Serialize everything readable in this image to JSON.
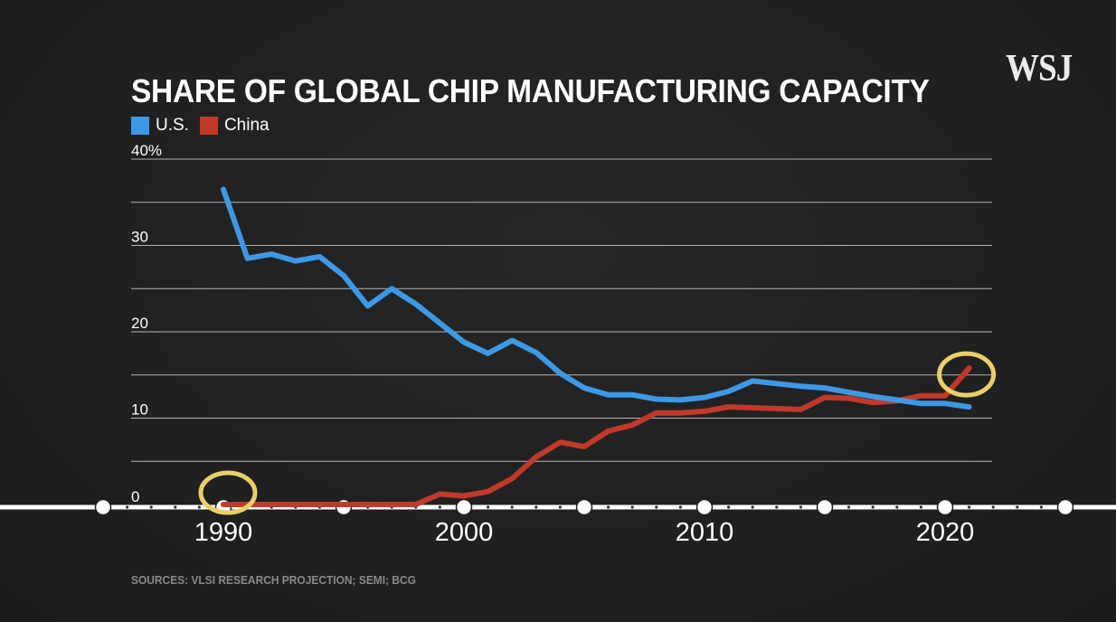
{
  "logo": "WSJ",
  "title": "SHARE OF GLOBAL CHIP MANUFACTURING CAPACITY",
  "source": "SOURCES: VLSI RESEARCH PROJECTION; SEMI; BCG",
  "colors": {
    "us": "#3d99e6",
    "china": "#c0392b",
    "highlight": "#e8cf6a",
    "grid": "#d8d8d8"
  },
  "legend": [
    {
      "label": "U.S.",
      "color": "#3d99e6"
    },
    {
      "label": "China",
      "color": "#c0392b"
    }
  ],
  "chart_data": {
    "type": "line",
    "title": "SHARE OF GLOBAL CHIP MANUFACTURING CAPACITY",
    "xlabel": "",
    "ylabel": "",
    "xlim": [
      1985,
      2025
    ],
    "ylim": [
      0,
      40
    ],
    "grid": true,
    "legend_position": "top-left",
    "y_ticks": [
      {
        "value": 0,
        "label": "0"
      },
      {
        "value": 10,
        "label": "10"
      },
      {
        "value": 20,
        "label": "20"
      },
      {
        "value": 30,
        "label": "30"
      },
      {
        "value": 40,
        "label": "40%"
      }
    ],
    "x_ticks": [
      {
        "value": 1990,
        "label": "1990"
      },
      {
        "value": 2000,
        "label": "2000"
      },
      {
        "value": 2010,
        "label": "2010"
      },
      {
        "value": 2020,
        "label": "2020"
      }
    ],
    "series": [
      {
        "name": "U.S.",
        "color": "#3d99e6",
        "x": [
          1990,
          1991,
          1992,
          1993,
          1994,
          1995,
          1996,
          1997,
          1998,
          1999,
          2000,
          2001,
          2002,
          2003,
          2004,
          2005,
          2006,
          2007,
          2008,
          2009,
          2010,
          2011,
          2012,
          2013,
          2014,
          2015,
          2016,
          2017,
          2018,
          2019,
          2020,
          2021
        ],
        "values": [
          36.5,
          28.5,
          29,
          28.2,
          28.7,
          26.5,
          23,
          25,
          23.2,
          21,
          18.8,
          17.5,
          19,
          17.6,
          15.2,
          13.5,
          12.7,
          12.7,
          12.2,
          12.1,
          12.4,
          13.1,
          14.3,
          14,
          13.7,
          13.5,
          13,
          12.5,
          12.1,
          11.7,
          11.7,
          11.3
        ]
      },
      {
        "name": "China",
        "color": "#c0392b",
        "x": [
          1990,
          1991,
          1992,
          1993,
          1994,
          1995,
          1996,
          1997,
          1998,
          1999,
          2000,
          2001,
          2002,
          2003,
          2004,
          2005,
          2006,
          2007,
          2008,
          2009,
          2010,
          2011,
          2012,
          2013,
          2014,
          2015,
          2016,
          2017,
          2018,
          2019,
          2020,
          2021
        ],
        "values": [
          0,
          0,
          0,
          0,
          0,
          0,
          0,
          0,
          0,
          1.2,
          1,
          1.5,
          3,
          5.5,
          7.2,
          6.7,
          8.5,
          9.2,
          10.6,
          10.6,
          10.8,
          11.3,
          11.2,
          11.1,
          11,
          12.4,
          12.3,
          11.8,
          12,
          12.6,
          12.6,
          15.8
        ]
      }
    ]
  }
}
